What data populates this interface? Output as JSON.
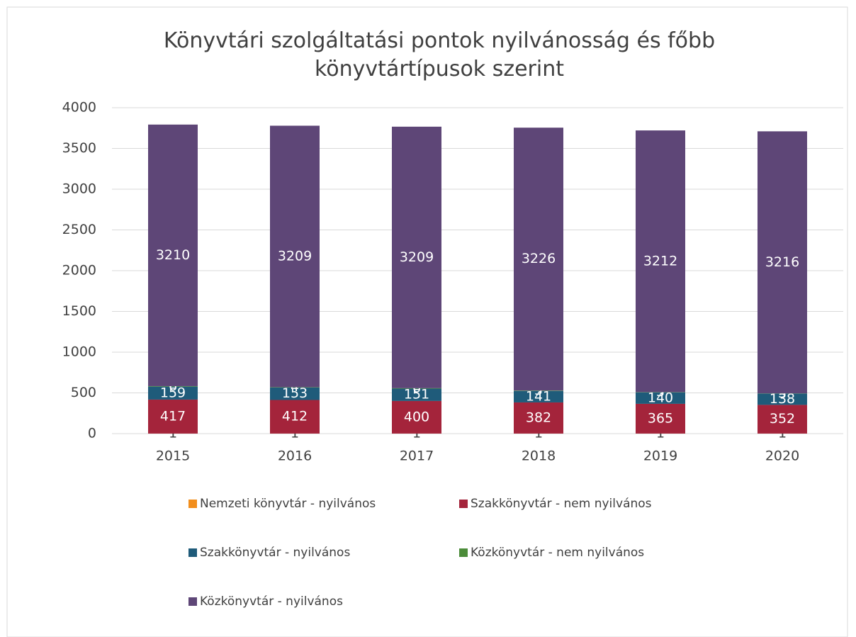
{
  "chart_data": {
    "type": "stacked_bar",
    "title": "Könyvtári szolgáltatási pontok nyilvánosság és főbb könyvtártípusok szerint",
    "categories": [
      "2015",
      "2016",
      "2017",
      "2018",
      "2019",
      "2020"
    ],
    "series": [
      {
        "name": "Nemzeti könyvtár - nyilvános",
        "color": "#f28e1c",
        "label_color": "#404040",
        "values": [
          1,
          1,
          1,
          1,
          1,
          1
        ]
      },
      {
        "name": "Szakkönyvtár - nem nyilvános",
        "color": "#a4243b",
        "label_color": "#ffffff",
        "values": [
          417,
          412,
          400,
          382,
          365,
          352
        ]
      },
      {
        "name": "Szakkönyvtár - nyilvános",
        "color": "#1f5b7a",
        "label_color": "#ffffff",
        "values": [
          159,
          153,
          151,
          141,
          140,
          138
        ]
      },
      {
        "name": "Közkönyvtár - nem nyilvános",
        "color": "#4c8c3a",
        "label_color": "#ffffff",
        "values": [
          6,
          4,
          6,
          5,
          3,
          3
        ]
      },
      {
        "name": "Közkönyvtár - nyilvános",
        "color": "#5e4677",
        "label_color": "#ffffff",
        "values": [
          3210,
          3209,
          3209,
          3226,
          3212,
          3216
        ]
      }
    ],
    "ylim": [
      0,
      4000
    ],
    "yticks": [
      0,
      500,
      1000,
      1500,
      2000,
      2500,
      3000,
      3500,
      4000
    ],
    "grid": true
  }
}
